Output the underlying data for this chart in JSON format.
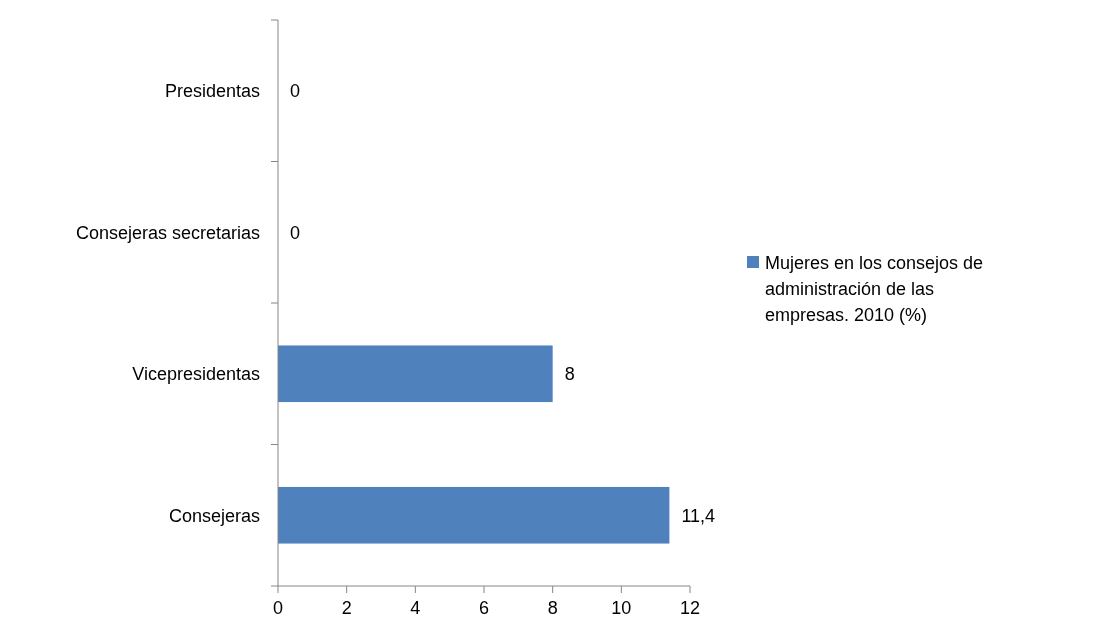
{
  "chart_data": {
    "type": "bar",
    "orientation": "horizontal",
    "categories": [
      "Presidentas",
      "Consejeras secretarias",
      "Vicepresidentas",
      "Consejeras"
    ],
    "series": [
      {
        "name": "Mujeres en los consejos de administración de las empresas. 2010 (%)",
        "color": "#4f81bd",
        "values": [
          0,
          0,
          8,
          11.4
        ],
        "value_labels": [
          "0",
          "0",
          "8",
          "11,4"
        ]
      }
    ],
    "xlim": [
      0,
      12
    ],
    "xticks": [
      0,
      2,
      4,
      6,
      8,
      10,
      12
    ],
    "grid": false,
    "legend": "right"
  }
}
